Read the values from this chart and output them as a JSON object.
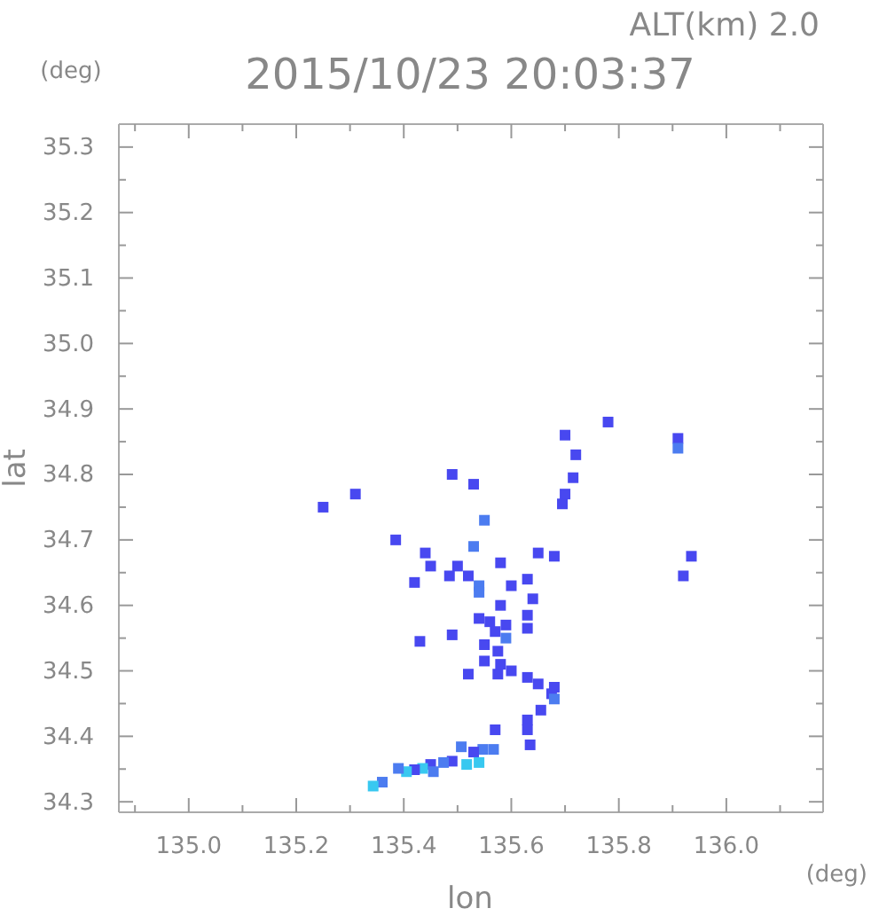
{
  "chart_data": {
    "type": "scatter",
    "title": "2015/10/23 20:03:37",
    "subtitle": "ALT(km) 2.0",
    "xlabel": "lon",
    "ylabel": "lat",
    "annotations": [
      "(deg)",
      "(deg)"
    ],
    "xlim": [
      134.87,
      136.18
    ],
    "ylim": [
      34.284,
      35.335
    ],
    "xticks": [
      {
        "value": 134.9,
        "label": null
      },
      {
        "value": 135.0,
        "label": "135.0"
      },
      {
        "value": 135.1,
        "label": null
      },
      {
        "value": 135.2,
        "label": "135.2"
      },
      {
        "value": 135.3,
        "label": null
      },
      {
        "value": 135.4,
        "label": "135.4"
      },
      {
        "value": 135.5,
        "label": null
      },
      {
        "value": 135.6,
        "label": "135.6"
      },
      {
        "value": 135.7,
        "label": null
      },
      {
        "value": 135.8,
        "label": "135.8"
      },
      {
        "value": 135.9,
        "label": null
      },
      {
        "value": 136.0,
        "label": "136.0"
      },
      {
        "value": 136.1,
        "label": null
      }
    ],
    "yticks": [
      34.3,
      {
        "value": 34.35,
        "label": null
      },
      34.4,
      {
        "value": 34.45,
        "label": null
      },
      34.5,
      {
        "value": 34.55,
        "label": null
      },
      34.6,
      {
        "value": 34.65,
        "label": null
      },
      34.7,
      {
        "value": 34.75,
        "label": null
      },
      34.8,
      {
        "value": 34.85,
        "label": null
      },
      34.9,
      {
        "value": 34.95,
        "label": null
      },
      {
        "value": 35.0,
        "label": "35.0"
      },
      {
        "value": 35.05,
        "label": null
      },
      35.1,
      {
        "value": 35.15,
        "label": null
      },
      35.2,
      {
        "value": 35.25,
        "label": null
      },
      35.3
    ],
    "grid": false,
    "marker": "square",
    "series": [
      {
        "x": [
          135.78,
          135.7,
          135.72,
          135.25,
          135.31,
          135.55,
          135.385,
          135.53,
          135.65,
          135.68,
          135.58,
          135.5,
          135.45,
          135.42,
          135.52,
          135.54,
          135.54,
          135.63,
          135.64,
          135.6,
          135.58,
          135.54,
          135.56,
          135.59,
          135.49,
          135.43,
          135.59,
          135.57,
          135.55,
          135.575,
          135.55,
          135.58,
          135.575,
          135.6,
          135.52,
          135.63,
          135.68,
          135.65,
          135.49,
          135.53,
          135.715,
          135.7,
          135.695,
          135.44,
          135.485,
          135.63,
          135.63,
          135.91,
          135.91,
          135.935,
          135.92,
          135.675,
          135.68,
          135.655,
          135.63,
          135.63,
          135.57,
          135.635,
          135.567,
          135.547,
          135.53,
          135.507,
          135.54,
          135.517,
          135.49,
          135.474,
          135.45,
          135.455,
          135.435,
          135.42,
          135.405,
          135.39,
          135.36,
          135.343
        ],
        "values": [
          34.88,
          34.86,
          34.83,
          34.75,
          34.77,
          34.73,
          34.7,
          34.69,
          34.68,
          34.675,
          34.665,
          34.66,
          34.66,
          34.635,
          34.645,
          34.63,
          34.62,
          34.64,
          34.61,
          34.63,
          34.6,
          34.58,
          34.575,
          34.57,
          34.555,
          34.545,
          34.55,
          34.56,
          34.54,
          34.53,
          34.515,
          34.51,
          34.495,
          34.5,
          34.495,
          34.49,
          34.475,
          34.48,
          34.8,
          34.785,
          34.795,
          34.77,
          34.755,
          34.68,
          34.645,
          34.585,
          34.565,
          34.855,
          34.84,
          34.675,
          34.645,
          34.465,
          34.457,
          34.44,
          34.425,
          34.41,
          34.41,
          34.387,
          34.38,
          34.38,
          34.376,
          34.384,
          34.36,
          34.357,
          34.362,
          34.36,
          34.357,
          34.346,
          34.351,
          34.349,
          34.346,
          34.351,
          34.33,
          34.324
        ],
        "colors": [
          "#4848f0",
          "#4848f0",
          "#4848f0",
          "#4848f0",
          "#4848f0",
          "#4c7cf0",
          "#4848f0",
          "#4c7cf0",
          "#4848f0",
          "#4848f0",
          "#4848f0",
          "#4848f0",
          "#4848f0",
          "#4848f0",
          "#4848f0",
          "#4c7cf0",
          "#4c7cf0",
          "#4848f0",
          "#4848f0",
          "#4848f0",
          "#4848f0",
          "#4848f0",
          "#4848f0",
          "#4848f0",
          "#4848f0",
          "#4848f0",
          "#4c7cf0",
          "#4848f0",
          "#4848f0",
          "#4848f0",
          "#4848f0",
          "#4848f0",
          "#4848f0",
          "#4848f0",
          "#4848f0",
          "#4848f0",
          "#4848f0",
          "#4848f0",
          "#4848f0",
          "#4848f0",
          "#4848f0",
          "#4848f0",
          "#4848f0",
          "#4848f0",
          "#4848f0",
          "#4848f0",
          "#4848f0",
          "#4848f0",
          "#4c7cf0",
          "#4848f0",
          "#4848f0",
          "#4848f0",
          "#4c7cf0",
          "#4848f0",
          "#4848f0",
          "#4848f0",
          "#4848f0",
          "#4848f0",
          "#4c7cf0",
          "#4c7cf0",
          "#4848f0",
          "#4c7cf0",
          "#38c8f0",
          "#38c8f0",
          "#4848f0",
          "#4c7cf0",
          "#4848f0",
          "#4c7cf0",
          "#38c8f0",
          "#4848f0",
          "#38c8f0",
          "#4c7cf0",
          "#4c7cf0",
          "#38c8f0"
        ]
      }
    ]
  }
}
